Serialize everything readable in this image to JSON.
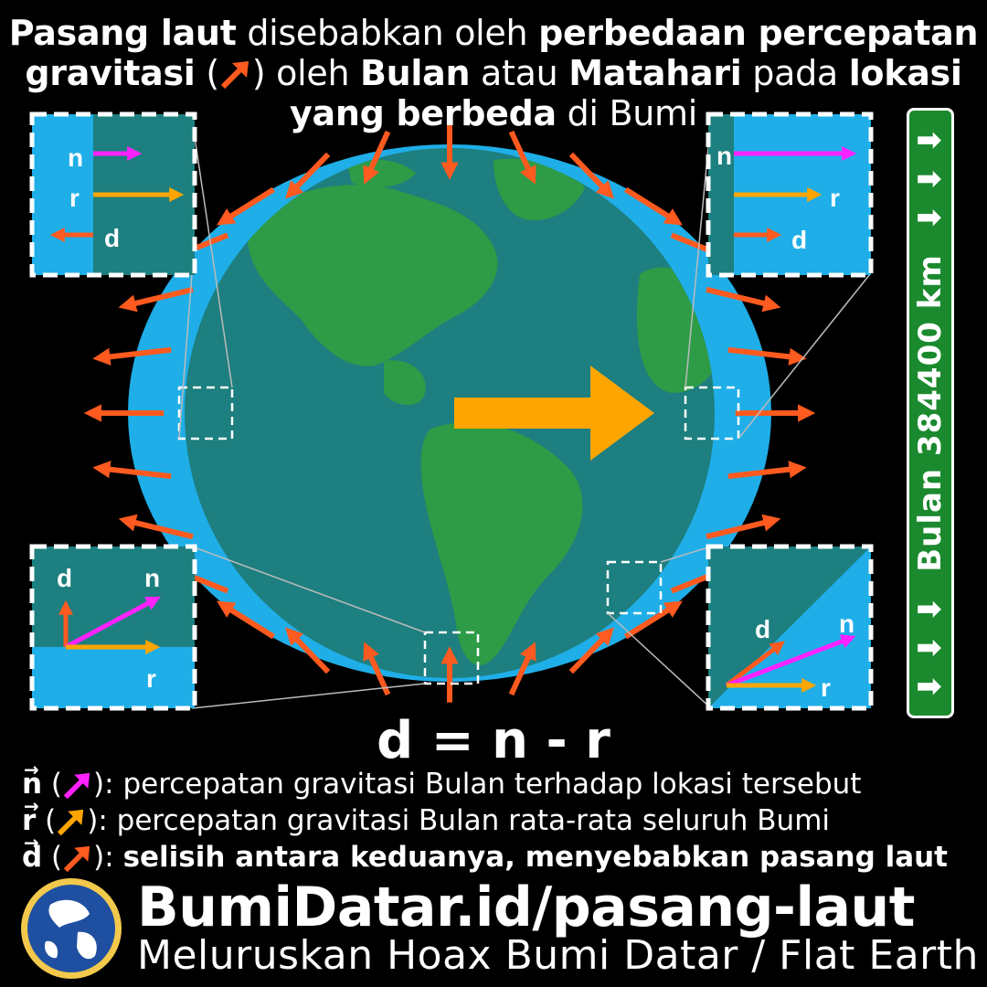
{
  "title": {
    "l1a": "Pasang laut",
    "l1b": " disebabkan oleh ",
    "l1c": "perbedaan percepatan",
    "l2a": "gravitasi",
    "l2b": " (",
    "l2c": ") oleh ",
    "l2d": "Bulan",
    "l2e": " atau ",
    "l2f": "Matahari",
    "l2g": " pada ",
    "l2h": "lokasi",
    "l3a": "yang berbeda",
    "l3b": " di Bumi"
  },
  "moon_sign": {
    "text": "Bulan 384400 km",
    "arrows": "⬇ ⬇ ⬇"
  },
  "vectors": {
    "n": "n",
    "r": "r",
    "d": "d"
  },
  "formula": "d = n - r",
  "legend": [
    {
      "symbol": "n",
      "open": " (",
      "close": "): ",
      "text": "percepatan gravitasi Bulan terhadap lokasi tersebut",
      "color": "#ff22ff"
    },
    {
      "symbol": "r",
      "open": "  (",
      "close": "): ",
      "text": "percepatan gravitasi Bulan rata-rata seluruh Bumi",
      "color": "#ffa500"
    },
    {
      "symbol": "d",
      "open": " (",
      "close": "): ",
      "text": "selisih antara keduanya, menyebabkan pasang laut",
      "color": "#ff5a1f"
    }
  ],
  "footer": {
    "site": "BumiDatar.id/pasang-laut",
    "tagline": "Meluruskan Hoax Bumi Datar / Flat Earth"
  },
  "colors": {
    "ocean_bulge": "#1faee8",
    "earth_ocean": "#1d7f7f",
    "land": "#2e9b47",
    "tidal_arrow": "#ff5a1f",
    "moon_arrow": "#ffa500",
    "n_arrow": "#ff22ff",
    "sign_green": "#1b8a2e"
  },
  "icons": {
    "logo": "globe-logo-icon",
    "tide_arrow": "arrow-icon"
  }
}
